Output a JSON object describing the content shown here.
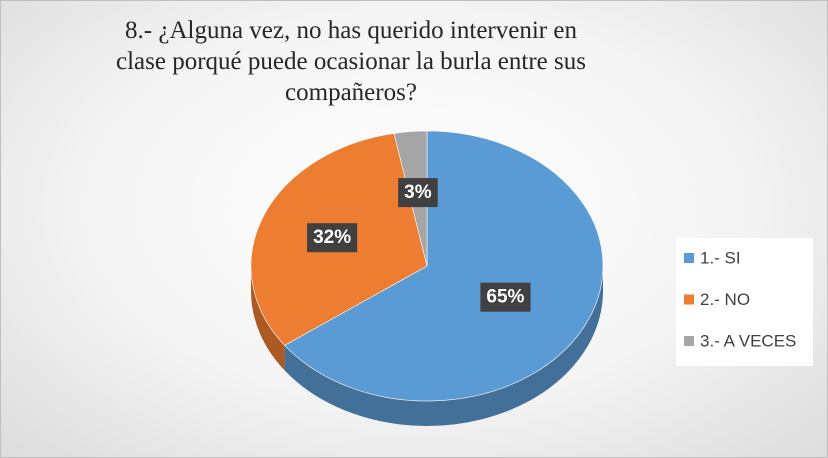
{
  "chart_data": {
    "type": "pie",
    "title": "8.- ¿Alguna vez, no has querido intervenir en clase porqué puede ocasionar la burla entre sus compañeros?",
    "categories": [
      "1.- SI",
      "2.- NO",
      "3.- A VECES"
    ],
    "values": [
      65,
      32,
      3
    ],
    "value_labels": [
      "65%",
      "32%",
      "3%"
    ],
    "colors": [
      "#5b9bd5",
      "#ed7d31",
      "#a5a5a5"
    ],
    "legend": "right"
  }
}
